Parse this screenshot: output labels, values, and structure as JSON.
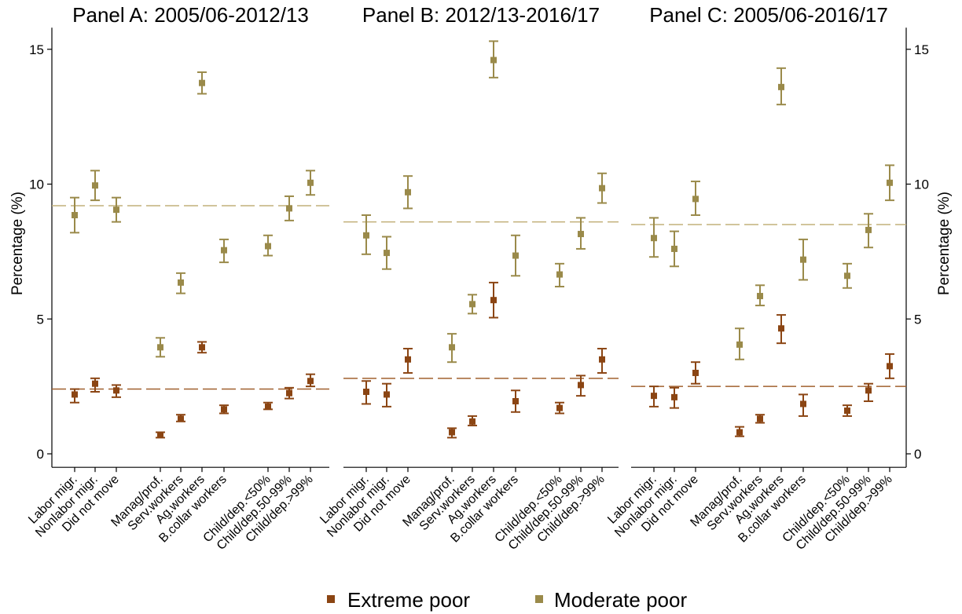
{
  "chart_data": {
    "type": "scatter",
    "ylabel": "Percentage (%)",
    "ylim": [
      -0.5,
      15.8
    ],
    "yticks": [
      0,
      5,
      10,
      15
    ],
    "categories": [
      "Labor migr.",
      "Nonlabor migr.",
      "Did not move",
      "Manag/prof.",
      "Serv.workers",
      "Ag.workers",
      "B.collar workers",
      "Child/dep.<50%",
      "Child/dep.50-99%",
      "Child/dep.>99%"
    ],
    "colors": {
      "extreme": "#8B4513",
      "moderate": "#9A8A4A",
      "ref_extreme": "#A0602E",
      "ref_moderate": "#C2B07A"
    },
    "legend": {
      "position": "bottom",
      "entries": [
        "Extreme poor",
        "Moderate poor"
      ]
    },
    "panels": [
      {
        "title": "Panel A: 2005/06-2012/13",
        "ref_extreme": 2.4,
        "ref_moderate": 9.2,
        "series": [
          {
            "name": "Extreme poor",
            "values": [
              2.2,
              2.6,
              2.35,
              0.7,
              1.3,
              3.95,
              1.65,
              1.75,
              2.25,
              2.7
            ],
            "ci_low": [
              1.9,
              2.3,
              2.1,
              0.6,
              1.2,
              3.75,
              1.5,
              1.65,
              2.05,
              2.5
            ],
            "ci_high": [
              2.4,
              2.8,
              2.55,
              0.8,
              1.45,
              4.15,
              1.8,
              1.9,
              2.45,
              2.95
            ]
          },
          {
            "name": "Moderate poor",
            "values": [
              8.85,
              9.95,
              9.05,
              3.95,
              6.35,
              13.75,
              7.55,
              7.7,
              9.1,
              10.05
            ],
            "ci_low": [
              8.2,
              9.4,
              8.6,
              3.6,
              5.95,
              13.35,
              7.1,
              7.35,
              8.65,
              9.6
            ],
            "ci_high": [
              9.5,
              10.5,
              9.5,
              4.3,
              6.7,
              14.15,
              7.95,
              8.1,
              9.55,
              10.5
            ]
          }
        ]
      },
      {
        "title": "Panel B: 2012/13-2016/17",
        "ref_extreme": 2.8,
        "ref_moderate": 8.6,
        "series": [
          {
            "name": "Extreme poor",
            "values": [
              2.3,
              2.2,
              3.5,
              0.8,
              1.2,
              5.7,
              1.95,
              1.7,
              2.55,
              3.5
            ],
            "ci_low": [
              1.85,
              1.75,
              3.0,
              0.6,
              1.05,
              5.05,
              1.55,
              1.5,
              2.15,
              3.0
            ],
            "ci_high": [
              2.7,
              2.6,
              3.9,
              0.95,
              1.4,
              6.35,
              2.35,
              1.9,
              2.9,
              3.9
            ]
          },
          {
            "name": "Moderate poor",
            "values": [
              8.1,
              7.45,
              9.7,
              3.95,
              5.55,
              14.6,
              7.35,
              6.65,
              8.15,
              9.85
            ],
            "ci_low": [
              7.4,
              6.85,
              9.1,
              3.4,
              5.2,
              13.95,
              6.6,
              6.2,
              7.6,
              9.3
            ],
            "ci_high": [
              8.85,
              8.05,
              10.3,
              4.45,
              5.9,
              15.3,
              8.1,
              7.05,
              8.75,
              10.4
            ]
          }
        ]
      },
      {
        "title": "Panel C: 2005/06-2016/17",
        "ref_extreme": 2.5,
        "ref_moderate": 8.5,
        "series": [
          {
            "name": "Extreme poor",
            "values": [
              2.15,
              2.1,
              3.0,
              0.8,
              1.3,
              4.65,
              1.85,
              1.6,
              2.35,
              3.25
            ],
            "ci_low": [
              1.75,
              1.7,
              2.6,
              0.65,
              1.15,
              4.1,
              1.4,
              1.4,
              1.95,
              2.8
            ],
            "ci_high": [
              2.5,
              2.45,
              3.4,
              1.0,
              1.45,
              5.15,
              2.2,
              1.8,
              2.6,
              3.7
            ]
          },
          {
            "name": "Moderate poor",
            "values": [
              8.0,
              7.6,
              9.45,
              4.05,
              5.85,
              13.6,
              7.2,
              6.6,
              8.3,
              10.05
            ],
            "ci_low": [
              7.3,
              6.95,
              8.85,
              3.5,
              5.5,
              12.95,
              6.45,
              6.15,
              7.65,
              9.4
            ],
            "ci_high": [
              8.75,
              8.25,
              10.1,
              4.65,
              6.25,
              14.3,
              7.95,
              7.05,
              8.9,
              10.7
            ]
          }
        ]
      }
    ]
  }
}
